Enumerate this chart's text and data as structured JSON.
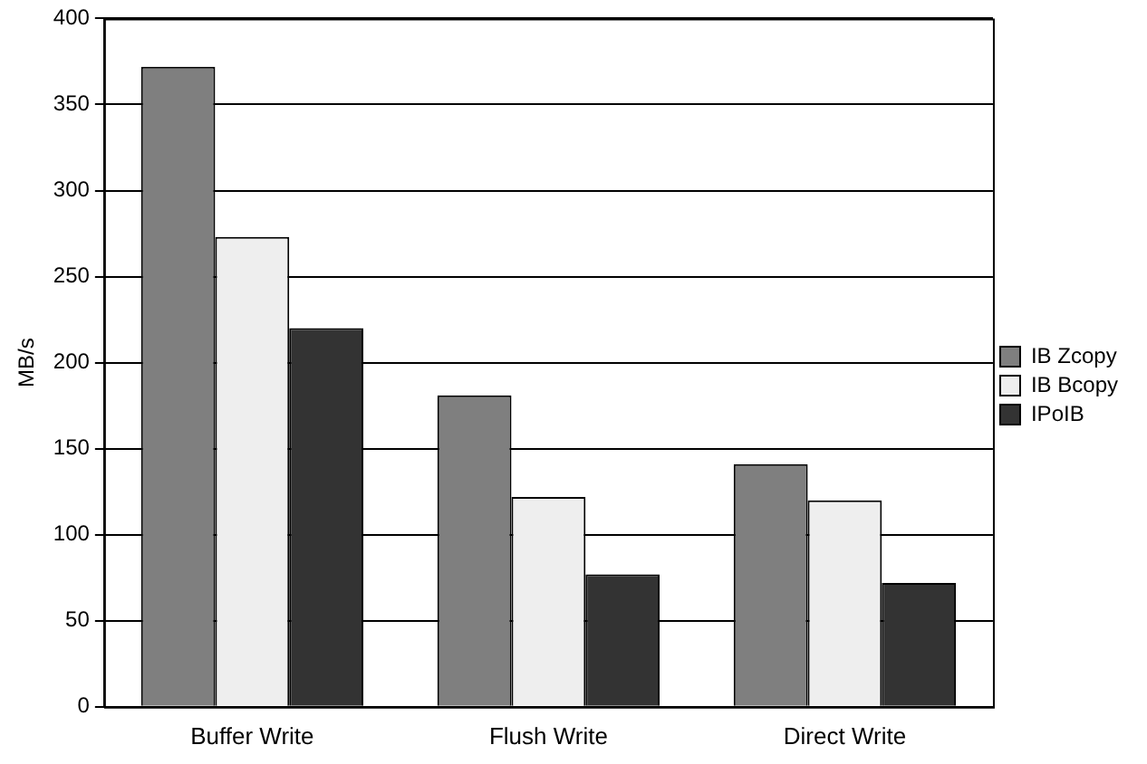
{
  "chart_data": {
    "type": "bar",
    "ylabel": "MB/s",
    "categories": [
      "Buffer Write",
      "Flush Write",
      "Direct Write"
    ],
    "series": [
      {
        "name": "IB Zcopy",
        "color": "#7f7f7f",
        "values": [
          372,
          181,
          141
        ]
      },
      {
        "name": "IB Bcopy",
        "color": "#eeeeee",
        "values": [
          273,
          122,
          120
        ]
      },
      {
        "name": "IPoIB",
        "color": "#333333",
        "values": [
          220,
          77,
          72
        ]
      }
    ],
    "ylim": [
      0,
      400
    ],
    "yticks": [
      0,
      50,
      100,
      150,
      200,
      250,
      300,
      350,
      400
    ],
    "grid": "y",
    "legend": "right"
  }
}
